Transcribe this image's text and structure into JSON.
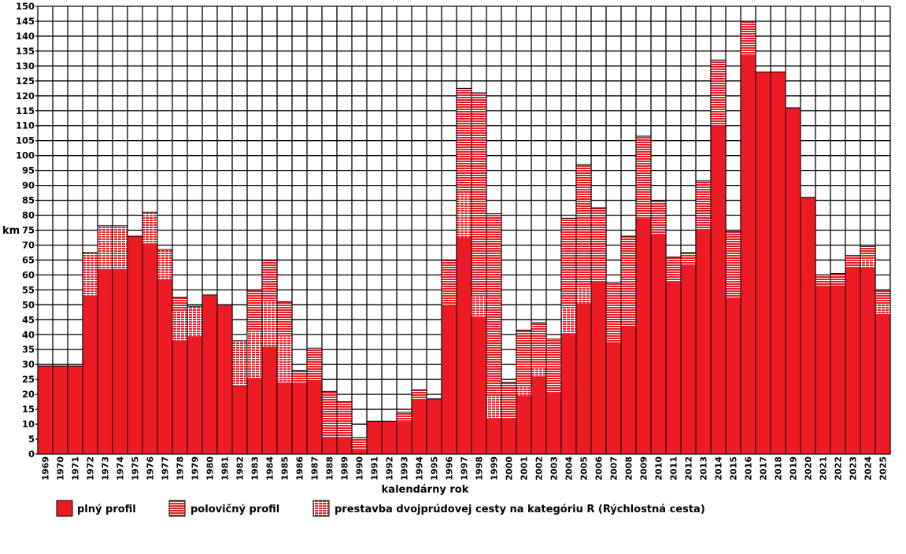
{
  "chart_data": {
    "type": "bar",
    "stacked": true,
    "xlabel": "kalendárny rok",
    "ylabel": "km",
    "ylim": [
      0,
      150
    ],
    "ytick_step": 5,
    "grid": true,
    "legend_position": "bottom-left",
    "categories": [
      "1969",
      "1970",
      "1971",
      "1972",
      "1973",
      "1974",
      "1975",
      "1976",
      "1977",
      "1978",
      "1979",
      "1980",
      "1981",
      "1982",
      "1983",
      "1984",
      "1985",
      "1986",
      "1987",
      "1988",
      "1989",
      "1990",
      "1991",
      "1992",
      "1993",
      "1994",
      "1995",
      "1996",
      "1997",
      "1998",
      "1999",
      "2000",
      "2001",
      "2002",
      "2003",
      "2004",
      "2005",
      "2006",
      "2007",
      "2008",
      "2009",
      "2010",
      "2011",
      "2012",
      "2013",
      "2014",
      "2015",
      "2016",
      "2017",
      "2018",
      "2019",
      "2020",
      "2021",
      "2022",
      "2023",
      "2024",
      "2025"
    ],
    "series": [
      {
        "name": "plný profil",
        "color": "#ed1c24",
        "pattern": "solid",
        "values": [
          29.5,
          29.5,
          29.5,
          53,
          62,
          62,
          73,
          70.5,
          58.5,
          38,
          39.5,
          53.3,
          50,
          23,
          25.5,
          36,
          24,
          24,
          24.5,
          5.5,
          5.5,
          1.5,
          11,
          11,
          11,
          18.5,
          18.5,
          50,
          72.5,
          46,
          12,
          12,
          19.5,
          26,
          20.5,
          40.5,
          50.5,
          57.5,
          37.5,
          43,
          79,
          73.5,
          57.5,
          63,
          75,
          110,
          52.5,
          133.5,
          128,
          128,
          116,
          86,
          56,
          56.5,
          62.5,
          62.5,
          47
        ]
      },
      {
        "name": "prestavba dvojprúdovej cesty na kategóriu R (Rýchlostná cesta)",
        "color": "#ed1c24",
        "pattern": "grid",
        "values": [
          0,
          0,
          0,
          14.5,
          14.5,
          14.5,
          0,
          10.5,
          10,
          10,
          10,
          0,
          0,
          15,
          15.5,
          15,
          15.5,
          0,
          0,
          0,
          0,
          0,
          0,
          0,
          0,
          0,
          0,
          0,
          15,
          7,
          7.5,
          0,
          3,
          3,
          0,
          8.5,
          5.5,
          0,
          0,
          0,
          0,
          0,
          0,
          0,
          0,
          0,
          0,
          0,
          0,
          0,
          0,
          0,
          0,
          0,
          0,
          3,
          3
        ]
      },
      {
        "name": "polovičný profil",
        "color": "#ed1c24",
        "pattern": "horizontal-stripes",
        "values": [
          0,
          0,
          0,
          0,
          0,
          0,
          0,
          0,
          0,
          4.5,
          0,
          0,
          0,
          0,
          14,
          14,
          11.5,
          4,
          11,
          15.5,
          12,
          4,
          0,
          0,
          3,
          3,
          0,
          15,
          35,
          68,
          61,
          12,
          19,
          15,
          18,
          30,
          41,
          25,
          20,
          30,
          27.5,
          11.5,
          8.5,
          4.5,
          16.5,
          22,
          22,
          11.5,
          0,
          0,
          0,
          0,
          4,
          4,
          4,
          4,
          5
        ]
      }
    ],
    "legend": [
      "plný profil",
      "polovičný profil",
      "prestavba dvojprúdovej cesty na kategóriu R (Rýchlostná cesta)"
    ]
  }
}
